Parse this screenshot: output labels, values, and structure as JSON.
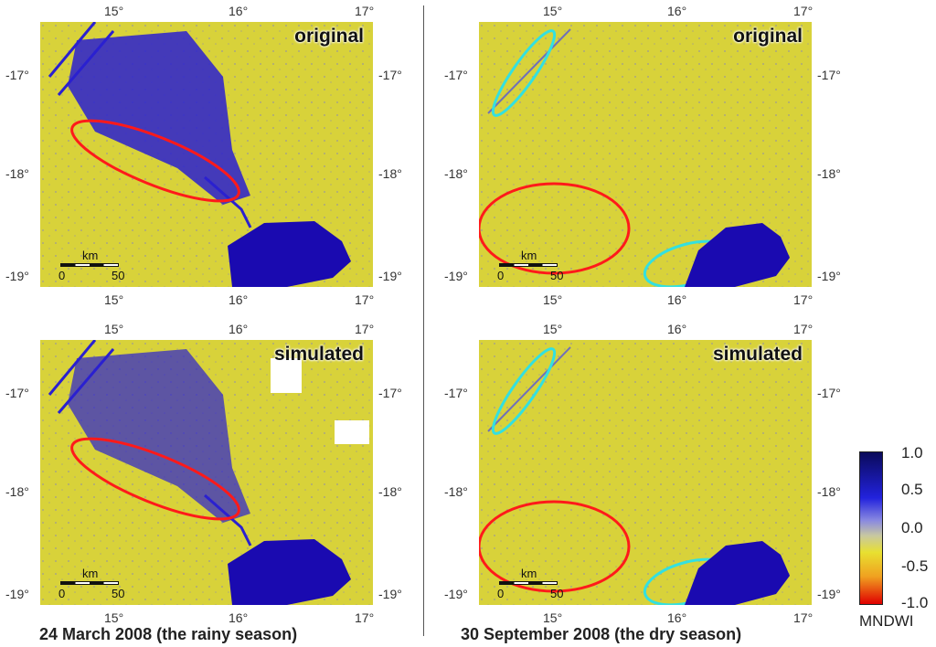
{
  "panels": [
    {
      "tag": "original"
    },
    {
      "tag": "original"
    },
    {
      "tag": "simulated"
    },
    {
      "tag": "simulated"
    }
  ],
  "lon_ticks": [
    "15°",
    "16°",
    "17°"
  ],
  "lat_ticks": [
    "-17°",
    "-18°",
    "-19°"
  ],
  "scale": {
    "unit": "km",
    "start": "0",
    "end": "50"
  },
  "captions": {
    "left": "24 March 2008 (the rainy season)",
    "right": "30 September 2008 (the dry season)"
  },
  "legend": {
    "title": "MNDWI",
    "values": [
      "1.0",
      "0.5",
      "0.0",
      "-0.5",
      "-1.0"
    ],
    "colors": [
      "#0a0a5a",
      "#2222dd",
      "#a0a0c8",
      "#e8e030",
      "#e00000"
    ]
  },
  "colors": {
    "land": "#d8d23a",
    "water": "#2a20d0",
    "deep_water": "#1a0ab0",
    "red_ellipse": "#ff1a1a",
    "cyan_ellipse": "#33e0e0"
  }
}
